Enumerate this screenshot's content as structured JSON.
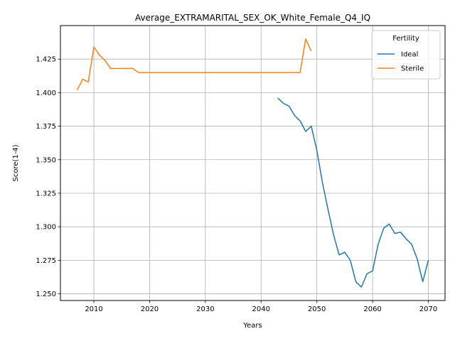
{
  "chart_data": {
    "type": "line",
    "title": "Average_EXTRAMARITAL_SEX_OK_White_Female_Q4_IQ",
    "xlabel": "Years",
    "ylabel": "Score(1-4)",
    "xlim": [
      2004,
      2073
    ],
    "ylim": [
      1.245,
      1.45
    ],
    "xticks": [
      2010,
      2020,
      2030,
      2040,
      2050,
      2060,
      2070
    ],
    "yticks": [
      1.25,
      1.275,
      1.3,
      1.325,
      1.35,
      1.375,
      1.4,
      1.425
    ],
    "ytick_labels": [
      "1.250",
      "1.275",
      "1.300",
      "1.325",
      "1.350",
      "1.375",
      "1.400",
      "1.425"
    ],
    "grid": true,
    "legend": {
      "title": "Fertility",
      "position": "top-right"
    },
    "series": [
      {
        "name": "Ideal",
        "color": "#1f77b4",
        "x": [
          2043,
          2044,
          2045,
          2046,
          2047,
          2048,
          2049,
          2050,
          2051,
          2052,
          2053,
          2054,
          2055,
          2056,
          2057,
          2058,
          2059,
          2060,
          2061,
          2062,
          2063,
          2064,
          2065,
          2066,
          2067,
          2068,
          2069,
          2070
        ],
        "y": [
          1.396,
          1.392,
          1.39,
          1.383,
          1.379,
          1.371,
          1.375,
          1.357,
          1.333,
          1.313,
          1.294,
          1.279,
          1.281,
          1.275,
          1.259,
          1.255,
          1.265,
          1.267,
          1.287,
          1.299,
          1.302,
          1.295,
          1.296,
          1.291,
          1.287,
          1.276,
          1.259,
          1.275
        ]
      },
      {
        "name": "Sterile",
        "color": "#ff7f0e",
        "x": [
          2007,
          2008,
          2009,
          2010,
          2011,
          2012,
          2013,
          2014,
          2015,
          2016,
          2017,
          2018,
          2019,
          2020,
          2025,
          2030,
          2035,
          2040,
          2045,
          2047,
          2048,
          2049
        ],
        "y": [
          1.402,
          1.41,
          1.408,
          1.434,
          1.428,
          1.424,
          1.418,
          1.418,
          1.418,
          1.418,
          1.418,
          1.415,
          1.415,
          1.415,
          1.415,
          1.415,
          1.415,
          1.415,
          1.415,
          1.415,
          1.44,
          1.431
        ]
      }
    ]
  }
}
